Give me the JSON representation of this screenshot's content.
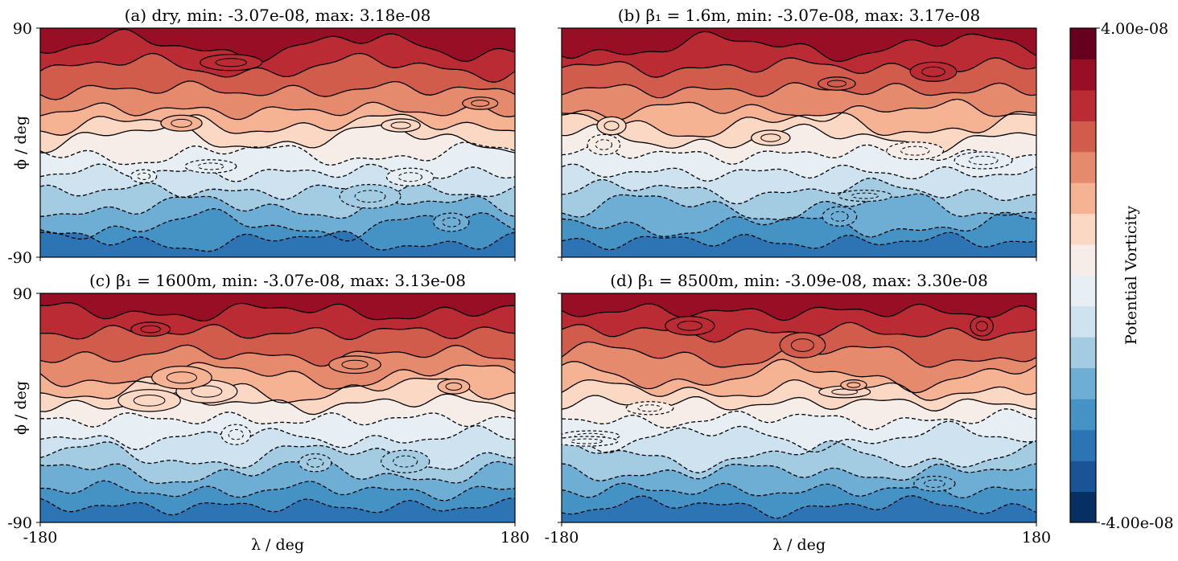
{
  "figure": {
    "colorbar": {
      "label": "Potential Vorticity",
      "max_label": "4.00e-08",
      "min_label": "-4.00e-08",
      "range": [
        -4e-08,
        4e-08
      ],
      "levels": 16,
      "colors": [
        "#053061",
        "#1a5396",
        "#2d74b4",
        "#4592c5",
        "#6eaed4",
        "#a3cce3",
        "#cee3ef",
        "#e7eff4",
        "#f7ede8",
        "#fbd8c4",
        "#f6b394",
        "#e58a6c",
        "#d15c4c",
        "#bb2b33",
        "#980e25",
        "#67001f"
      ]
    }
  },
  "chart_data": [
    {
      "type": "contourf",
      "title": "(a) dry, min: -3.07e-08, max: 3.18e-08",
      "xlabel": "",
      "ylabel": "ϕ / deg",
      "x_ticks": [
        "",
        ""
      ],
      "y_ticks": [
        "90",
        "-90"
      ],
      "xlim": [
        -180,
        180
      ],
      "ylim": [
        -90,
        90
      ],
      "field_min": -3.07e-08,
      "field_max": 3.18e-08,
      "contour_style": "solid for positive, dashed for negative"
    },
    {
      "type": "contourf",
      "title": "(b) β₁ = 1.6m, min: -3.07e-08, max: 3.17e-08",
      "xlabel": "",
      "ylabel": "",
      "x_ticks": [
        "",
        ""
      ],
      "y_ticks": [
        "",
        ""
      ],
      "xlim": [
        -180,
        180
      ],
      "ylim": [
        -90,
        90
      ],
      "field_min": -3.07e-08,
      "field_max": 3.17e-08,
      "contour_style": "solid for positive, dashed for negative"
    },
    {
      "type": "contourf",
      "title": "(c) β₁ = 1600m, min: -3.07e-08, max: 3.13e-08",
      "xlabel": "λ / deg",
      "ylabel": "ϕ / deg",
      "x_ticks": [
        "-180",
        "180"
      ],
      "y_ticks": [
        "90",
        "-90"
      ],
      "xlim": [
        -180,
        180
      ],
      "ylim": [
        -90,
        90
      ],
      "field_min": -3.07e-08,
      "field_max": 3.13e-08,
      "contour_style": "solid for positive, dashed for negative"
    },
    {
      "type": "contourf",
      "title": "(d) β₁ = 8500m, min: -3.09e-08, max: 3.30e-08",
      "xlabel": "λ / deg",
      "ylabel": "",
      "x_ticks": [
        "-180",
        "180"
      ],
      "y_ticks": [
        "",
        ""
      ],
      "xlim": [
        -180,
        180
      ],
      "ylim": [
        -90,
        90
      ],
      "field_min": -3.09e-08,
      "field_max": 3.3e-08,
      "contour_style": "solid for positive, dashed for negative"
    }
  ]
}
